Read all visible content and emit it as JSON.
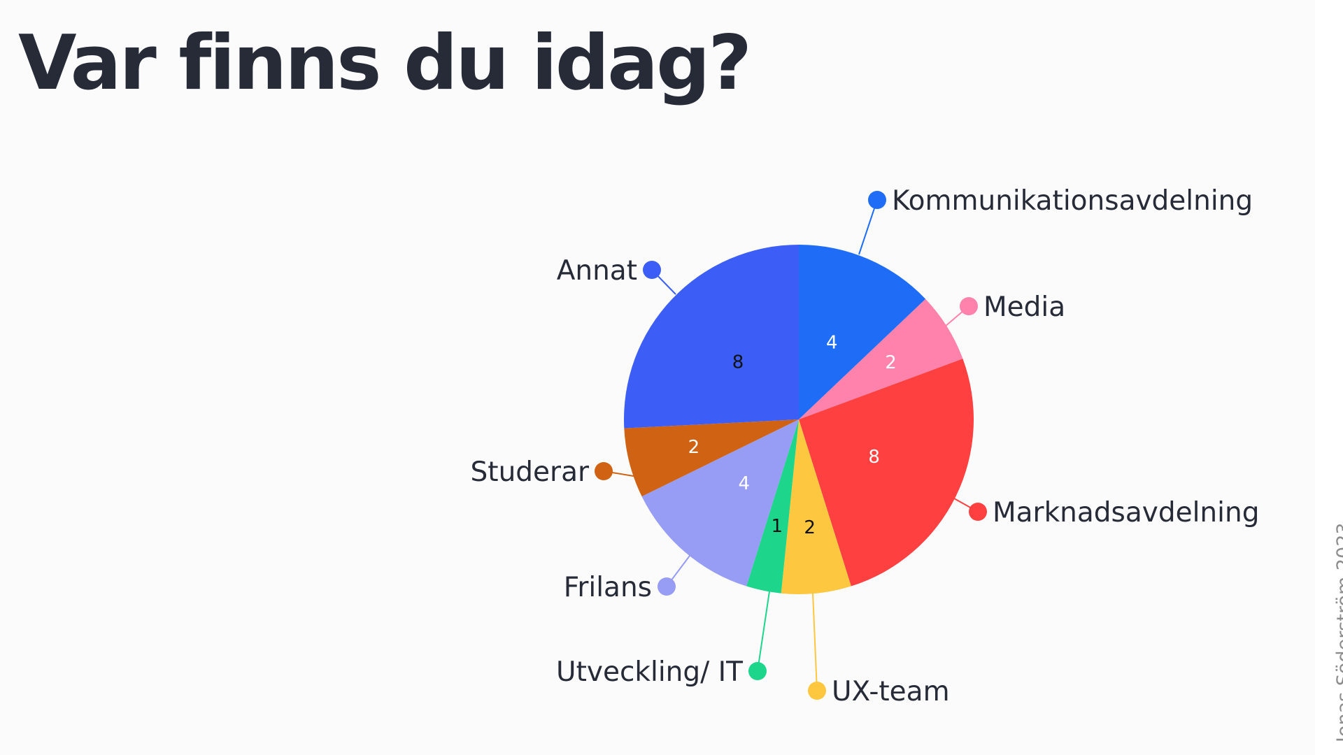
{
  "slide": {
    "title": "Var finns du idag?",
    "credit": "Jonas Söderström 2023"
  },
  "chart_data": {
    "type": "pie",
    "title": "Var finns du idag?",
    "start": "12 o'clock, clockwise",
    "slices": [
      {
        "label": "Kommunikationsavdelning",
        "value": 4,
        "color": "#1f6df7",
        "value_label_color": "#ffffff"
      },
      {
        "label": "Media",
        "value": 2,
        "color": "#ff82ac",
        "value_label_color": "#ffffff"
      },
      {
        "label": "Marknadsavdelning",
        "value": 8,
        "color": "#ff4040",
        "value_label_color": "#ffffff"
      },
      {
        "label": "UX-team",
        "value": 2,
        "color": "#fdc740",
        "value_label_color": "#111111"
      },
      {
        "label": "Utveckling/ IT",
        "value": 1,
        "color": "#1ed58c",
        "value_label_color": "#111111"
      },
      {
        "label": "Frilans",
        "value": 4,
        "color": "#979cf5",
        "value_label_color": "#ffffff"
      },
      {
        "label": "Studerar",
        "value": 2,
        "color": "#cf6313",
        "value_label_color": "#ffffff"
      },
      {
        "label": "Annat",
        "value": 8,
        "color": "#3c5ef7",
        "value_label_color": "#111111"
      }
    ]
  }
}
